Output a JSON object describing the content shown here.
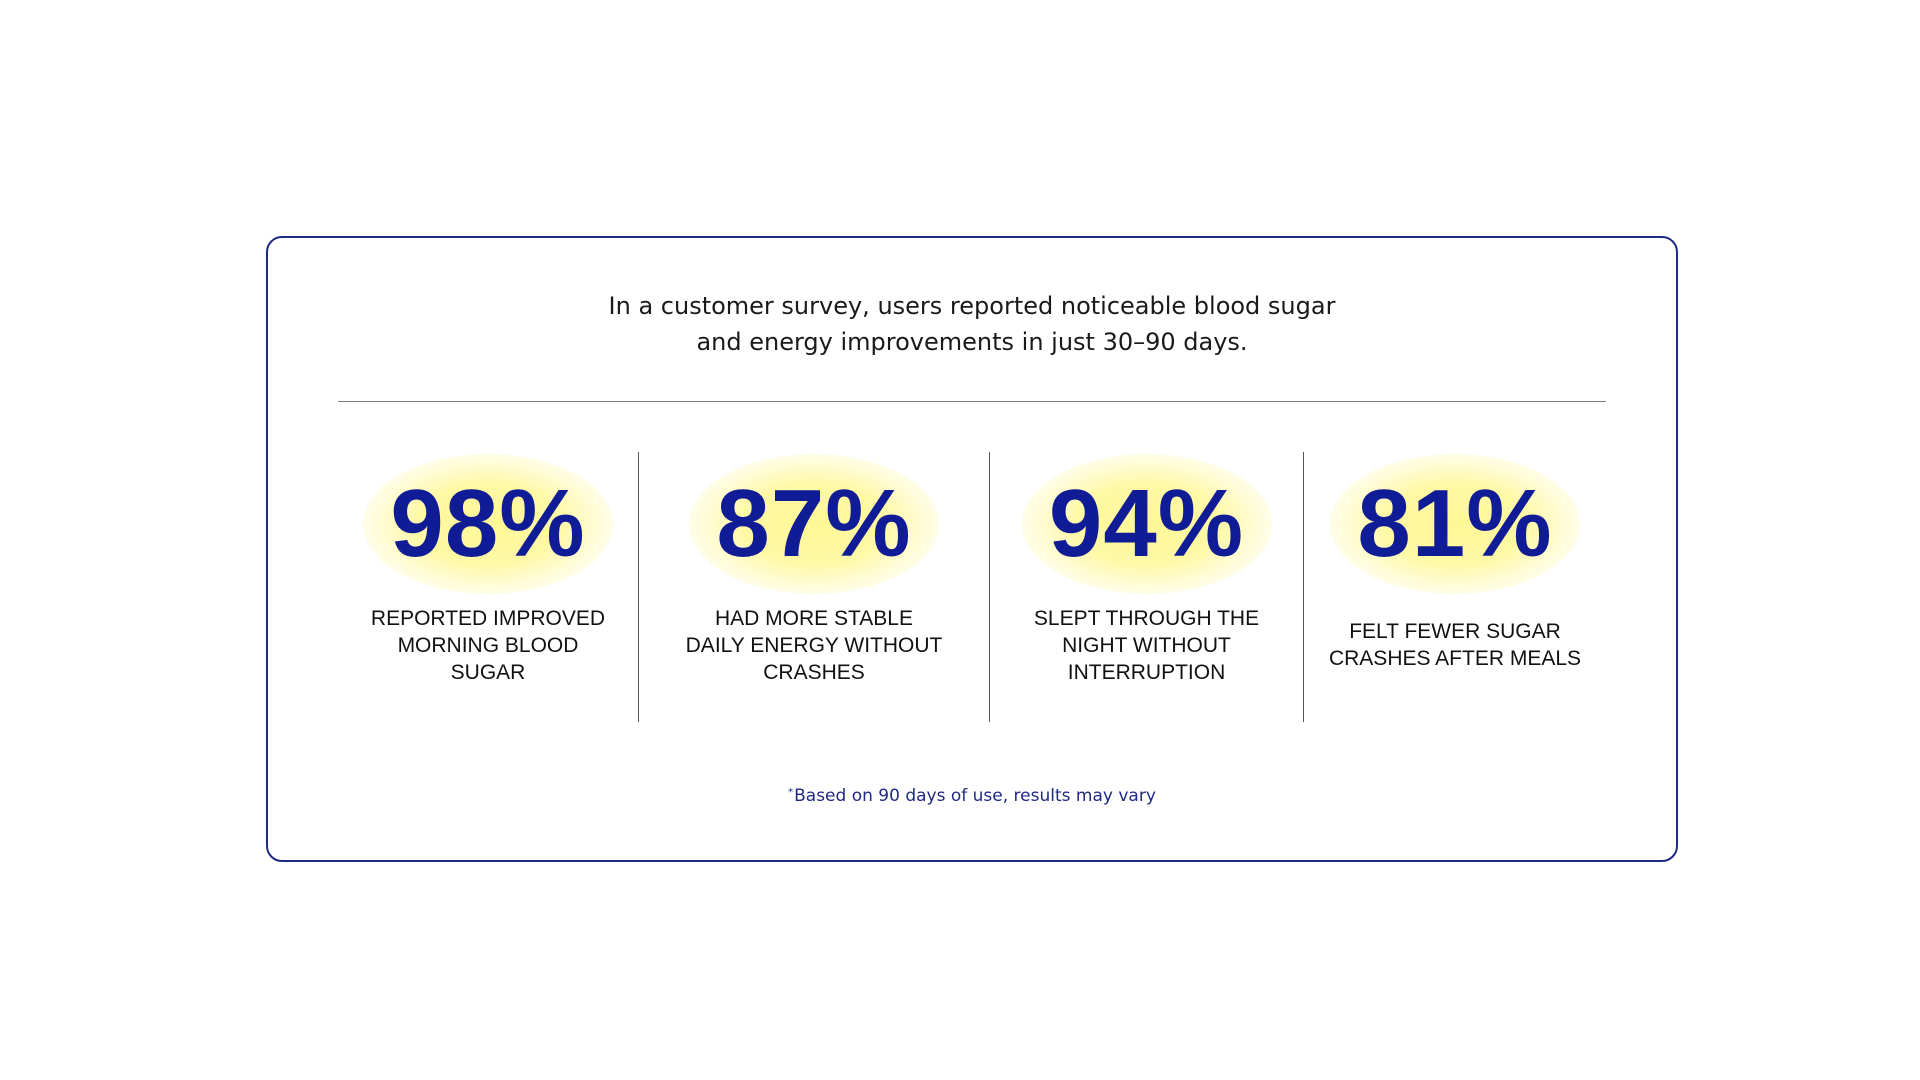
{
  "intro": "In a customer survey, users reported noticeable blood sugar and energy improvements in just 30–90 days.",
  "stats": [
    {
      "value": "98%",
      "label": "REPORTED IMPROVED MORNING BLOOD SUGAR"
    },
    {
      "value": "87%",
      "label": "HAD MORE STABLE DAILY ENERGY WITHOUT CRASHES"
    },
    {
      "value": "94%",
      "label": "SLEPT THROUGH THE NIGHT WITHOUT INTERRUPTION"
    },
    {
      "value": "81%",
      "label": "FELT FEWER SUGAR CRASHES AFTER MEALS"
    }
  ],
  "footnote": {
    "marker": "*",
    "text": "Based on 90 days of use, results may vary"
  },
  "colors": {
    "accent": "#101c96",
    "border": "#1f2a80",
    "glow": "#fff796"
  }
}
